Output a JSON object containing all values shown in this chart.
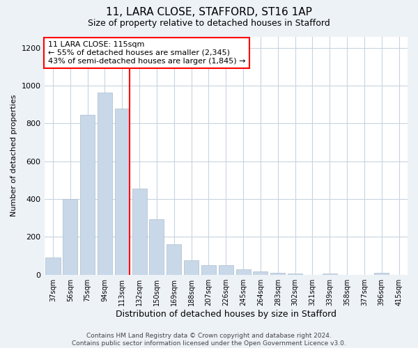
{
  "title": "11, LARA CLOSE, STAFFORD, ST16 1AP",
  "subtitle": "Size of property relative to detached houses in Stafford",
  "xlabel": "Distribution of detached houses by size in Stafford",
  "ylabel": "Number of detached properties",
  "categories": [
    "37sqm",
    "56sqm",
    "75sqm",
    "94sqm",
    "113sqm",
    "132sqm",
    "150sqm",
    "169sqm",
    "188sqm",
    "207sqm",
    "226sqm",
    "245sqm",
    "264sqm",
    "283sqm",
    "302sqm",
    "321sqm",
    "339sqm",
    "358sqm",
    "377sqm",
    "396sqm",
    "415sqm"
  ],
  "values": [
    90,
    400,
    845,
    965,
    880,
    455,
    295,
    160,
    75,
    52,
    52,
    28,
    18,
    10,
    5,
    0,
    8,
    0,
    0,
    10,
    0
  ],
  "bar_color": "#c8d8e8",
  "bar_edge_color": "#aabccc",
  "vline_x_index": 4,
  "vline_color": "red",
  "annotation_text": "11 LARA CLOSE: 115sqm\n← 55% of detached houses are smaller (2,345)\n43% of semi-detached houses are larger (1,845) →",
  "annotation_box_color": "white",
  "annotation_box_edge_color": "red",
  "ylim": [
    0,
    1260
  ],
  "yticks": [
    0,
    200,
    400,
    600,
    800,
    1000,
    1200
  ],
  "footer_text": "Contains HM Land Registry data © Crown copyright and database right 2024.\nContains public sector information licensed under the Open Government Licence v3.0.",
  "bg_color": "#edf2f7",
  "plot_bg_color": "white",
  "grid_color": "#c8d4e0"
}
